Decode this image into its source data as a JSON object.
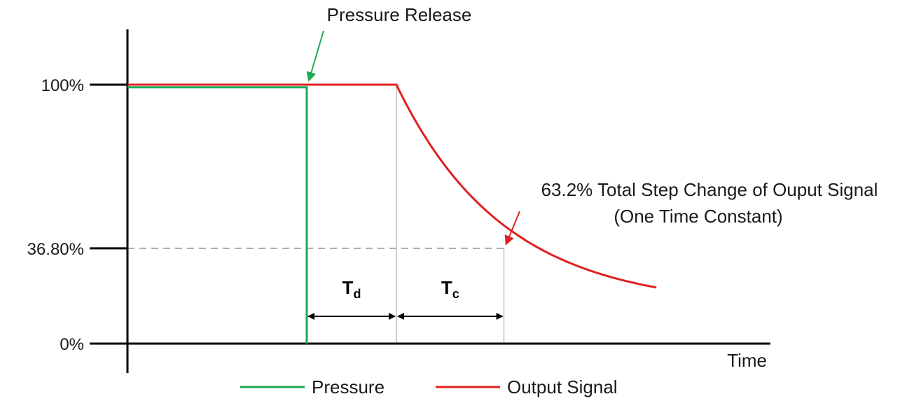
{
  "chart_data": {
    "type": "line",
    "title": "",
    "xlabel": "Time",
    "ylabel": "",
    "ylim": [
      0,
      100
    ],
    "yticks": [
      {
        "value": 0,
        "label": "0%"
      },
      {
        "value": 36.8,
        "label": "36.80%"
      },
      {
        "value": 100,
        "label": "100%"
      }
    ],
    "x_events": {
      "pressure_release": 1,
      "signal_start_decay": 1.5,
      "one_time_constant": 2.1,
      "end": 2.95
    },
    "series": [
      {
        "name": "Pressure",
        "color": "#1aaa55",
        "x": [
          0,
          1,
          1
        ],
        "y": [
          99,
          99,
          0
        ]
      },
      {
        "name": "Output Signal",
        "color": "#e02020",
        "x_start": 0,
        "x_decay_start": 1.5,
        "x_end": 2.95,
        "y_initial": 100,
        "y_final": 14,
        "tau": 0.6
      }
    ],
    "annotations": {
      "pressure_release": "Pressure Release",
      "time_constant_line1": "63.2% Total Step Change of Ouput Signal",
      "time_constant_line2": "(One Time Constant)",
      "td_main": "T",
      "td_sub": "d",
      "tc_main": "T",
      "tc_sub": "c"
    },
    "grid": false,
    "legend_position": "bottom-center"
  }
}
